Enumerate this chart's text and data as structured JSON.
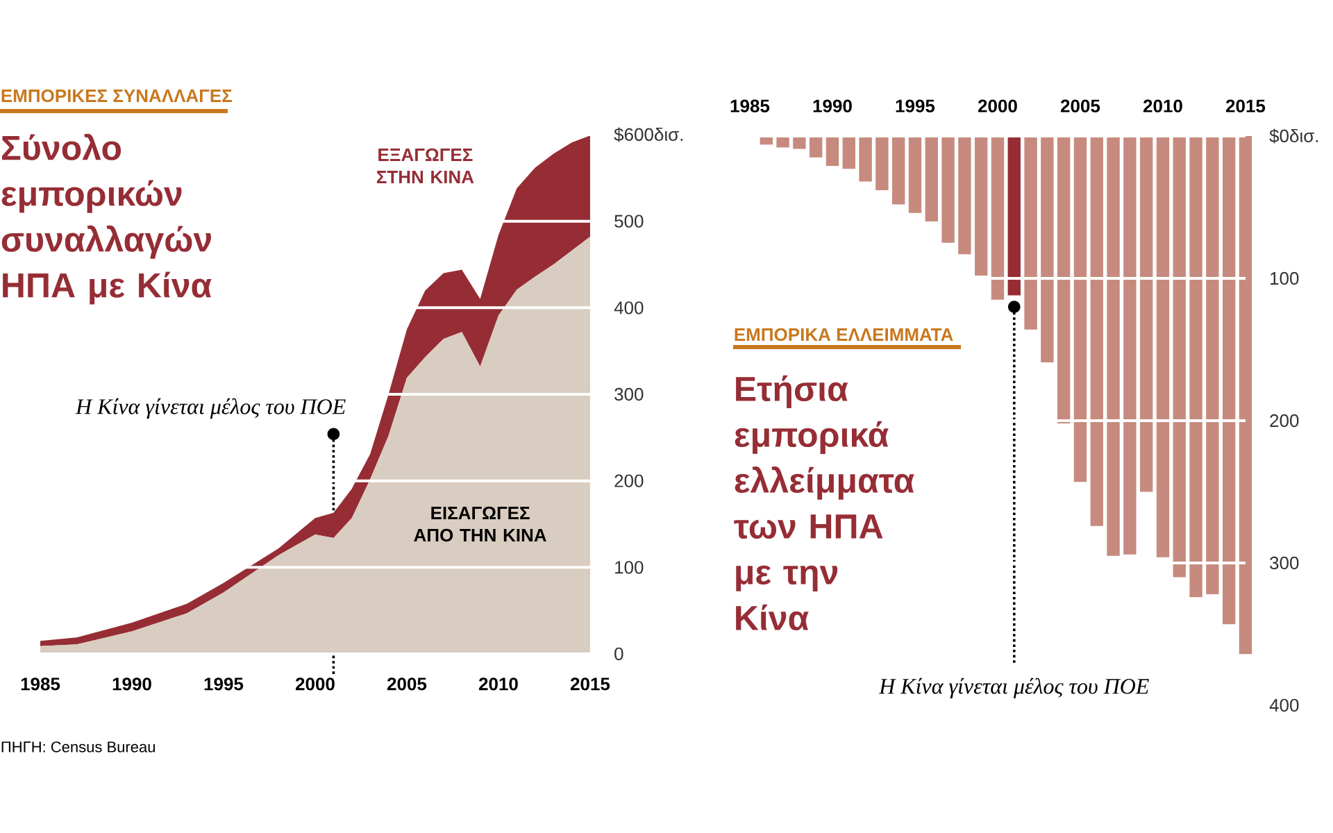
{
  "chart_data": [
    {
      "type": "area",
      "subtitle": "ΕΜΠΟΡΙΚΕΣ ΣΥΝΑΛΛΑΓΕΣ",
      "title": "Σύνολο εμπορικών συναλλαγών ΗΠΑ με Κίνα",
      "stacked": true,
      "grid": "y",
      "x": [
        1985,
        1987,
        1990,
        1993,
        1995,
        1998,
        2000,
        2001,
        2002,
        2003,
        2004,
        2005,
        2006,
        2007,
        2008,
        2009,
        2010,
        2011,
        2012,
        2013,
        2014,
        2015
      ],
      "series": [
        {
          "name": "ΕΙΣΑΓΩΓΕΣ ΑΠΟ ΤΗΝ ΚΙΝΑ",
          "color": "#d9ccc0",
          "values": [
            9,
            11,
            26,
            47,
            71,
            114,
            138,
            134,
            157,
            202,
            252,
            319,
            343,
            364,
            372,
            332,
            391,
            421,
            436,
            450,
            466,
            482
          ]
        },
        {
          "name": "ΕΞΑΓΩΓΕΣ ΣΤΗΝ ΚΙΝΑ",
          "color": "#962d35",
          "values": [
            6,
            8,
            10,
            11,
            11,
            8,
            19,
            29,
            34,
            29,
            48,
            56,
            77,
            76,
            72,
            78,
            93,
            117,
            126,
            128,
            125,
            117
          ]
        },
        {
          "type": "scatter",
          "x": [
            2001
          ],
          "values": [
            254
          ],
          "color": "#000000"
        }
      ],
      "xlim": [
        1985,
        2015
      ],
      "ylim": [
        0,
        600
      ],
      "xticks": [
        1985,
        1990,
        1995,
        2000,
        2005,
        2010,
        2015
      ],
      "yticks": [
        0,
        100,
        200,
        300,
        400,
        500,
        {
          "value": 600,
          "label": "$600δισ."
        }
      ],
      "ref_lines": [
        {
          "axis": "x",
          "value": 2001,
          "line_style": "dotted"
        }
      ],
      "annotations": [
        {
          "text": "Η Κίνα γίνεται μέλος του  ΠΟΕ",
          "x": 2001,
          "y": 254
        },
        "ΠΗΓΗ: Census Bureau"
      ]
    },
    {
      "type": "bar",
      "subtitle": "ΕΜΠΟΡΙΚΑ ΕΛΛΕΙΜΜΑΤΑ",
      "title": "Ετήσια εμπορικά ελλείμματα των ΗΠΑ με την Κίνα",
      "grid": "y",
      "x": [
        1986,
        1987,
        1988,
        1989,
        1990,
        1991,
        1992,
        1993,
        1994,
        1995,
        1996,
        1997,
        1998,
        1999,
        2000,
        2001,
        2002,
        2003,
        2004,
        2005,
        2006,
        2007,
        2008,
        2009,
        2010,
        2011,
        2012,
        2013,
        2014,
        2015
      ],
      "series": [
        {
          "values": [
            6,
            8,
            9,
            15,
            21,
            23,
            32,
            38,
            48,
            54,
            60,
            75,
            83,
            98,
            115,
            112,
            136,
            159,
            202,
            243,
            274,
            295,
            294,
            250,
            296,
            310,
            324,
            322,
            343,
            364
          ],
          "colors": [
            "#c68b7e",
            "#c68b7e",
            "#c68b7e",
            "#c68b7e",
            "#c68b7e",
            "#c68b7e",
            "#c68b7e",
            "#c68b7e",
            "#c68b7e",
            "#c68b7e",
            "#c68b7e",
            "#c68b7e",
            "#c68b7e",
            "#c68b7e",
            "#c68b7e",
            "#962d35",
            "#c68b7e",
            "#c68b7e",
            "#c68b7e",
            "#c68b7e",
            "#c68b7e",
            "#c68b7e",
            "#c68b7e",
            "#c68b7e",
            "#c68b7e",
            "#c68b7e",
            "#c68b7e",
            "#c68b7e",
            "#c68b7e",
            "#c68b7e"
          ]
        },
        {
          "type": "scatter",
          "x": [
            2001
          ],
          "values": [
            120
          ],
          "color": "#000000"
        }
      ],
      "xlim": [
        1985,
        2015
      ],
      "ylim": [
        400,
        0
      ],
      "xticks": [
        1985,
        1990,
        1995,
        2000,
        2005,
        2010,
        2015
      ],
      "yticks": [
        {
          "value": 0,
          "label": "$0δισ."
        },
        100,
        200,
        300,
        400
      ],
      "ref_lines": [
        {
          "axis": "x",
          "value": 2001,
          "line_style": "dotted"
        }
      ],
      "annotations": [
        {
          "text": "Η Κίνα γίνεται μέλος του  ΠΟΕ",
          "x": 2001,
          "y": 372
        }
      ]
    }
  ]
}
